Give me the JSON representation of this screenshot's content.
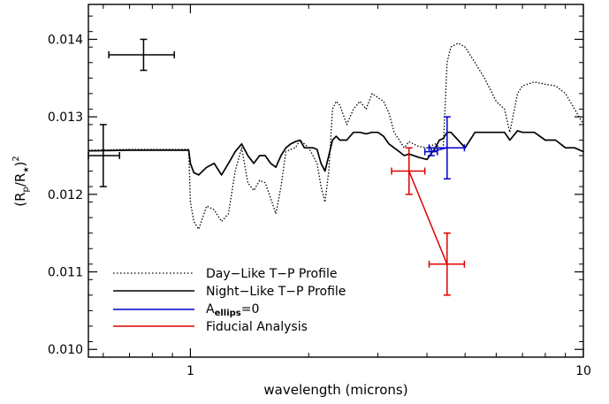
{
  "chart_data": {
    "type": "line",
    "xlabel": "wavelength (microns)",
    "ylabel": {
      "base": "(R",
      "sub1": "p",
      "mid": "/R",
      "sub2": "★",
      "close": ")",
      "sup": "2"
    },
    "x_scale": "log",
    "xlim": [
      0.55,
      10
    ],
    "ylim": [
      0.0099,
      0.01445
    ],
    "x_ticks": [
      {
        "value": 1,
        "label": "1"
      },
      {
        "value": 10,
        "label": "10"
      }
    ],
    "y_ticks": [
      {
        "value": 0.01,
        "label": "0.010"
      },
      {
        "value": 0.011,
        "label": "0.011"
      },
      {
        "value": 0.012,
        "label": "0.012"
      },
      {
        "value": 0.013,
        "label": "0.013"
      },
      {
        "value": 0.014,
        "label": "0.014"
      }
    ],
    "legend_position": "bottom-left",
    "legend": [
      {
        "label": "Day−Like T−P Profile",
        "style": "dotted",
        "color": "#000000"
      },
      {
        "label": "Night−Like T−P Profile",
        "style": "solid",
        "color": "#000000"
      },
      {
        "label_base": "A",
        "label_sub": "ellips",
        "label_rest": "=0",
        "style": "solid",
        "color": "#0000cc"
      },
      {
        "label": "Fiducial Analysis",
        "style": "solid",
        "color": "#dd0000"
      }
    ],
    "series": [
      {
        "style": "dotted",
        "color": "#000000",
        "x": [
          0.55,
          0.7,
          0.85,
          0.99,
          1.0,
          1.02,
          1.05,
          1.1,
          1.15,
          1.2,
          1.25,
          1.3,
          1.35,
          1.4,
          1.45,
          1.5,
          1.55,
          1.6,
          1.65,
          1.7,
          1.75,
          1.8,
          1.85,
          1.9,
          1.95,
          2.0,
          2.05,
          2.1,
          2.15,
          2.2,
          2.25,
          2.3,
          2.35,
          2.4,
          2.5,
          2.6,
          2.7,
          2.8,
          2.9,
          3.0,
          3.1,
          3.2,
          3.3,
          3.4,
          3.5,
          3.6,
          3.8,
          4.0,
          4.2,
          4.3,
          4.4,
          4.5,
          4.6,
          4.8,
          5.0,
          5.3,
          5.6,
          6.0,
          6.3,
          6.5,
          6.8,
          7.0,
          7.5,
          8.0,
          8.5,
          9.0,
          9.5,
          10.0
        ],
        "y": [
          0.01257,
          0.01258,
          0.01258,
          0.01258,
          0.0119,
          0.01165,
          0.01155,
          0.01185,
          0.0118,
          0.01165,
          0.01175,
          0.0123,
          0.0126,
          0.01215,
          0.01205,
          0.01218,
          0.01215,
          0.01195,
          0.01175,
          0.0121,
          0.01255,
          0.01258,
          0.0126,
          0.0127,
          0.01265,
          0.0126,
          0.0125,
          0.0124,
          0.0121,
          0.0119,
          0.0123,
          0.0131,
          0.0132,
          0.01315,
          0.0129,
          0.0131,
          0.0132,
          0.0131,
          0.0133,
          0.01325,
          0.0132,
          0.01305,
          0.0128,
          0.0127,
          0.0126,
          0.01268,
          0.01262,
          0.0126,
          0.01265,
          0.0126,
          0.0126,
          0.0137,
          0.0139,
          0.01395,
          0.0139,
          0.0137,
          0.0135,
          0.0132,
          0.0131,
          0.0128,
          0.0133,
          0.0134,
          0.01345,
          0.01342,
          0.0134,
          0.0133,
          0.0131,
          0.0129
        ]
      },
      {
        "style": "solid",
        "color": "#000000",
        "x": [
          0.55,
          0.7,
          0.85,
          0.99,
          1.0,
          1.02,
          1.05,
          1.1,
          1.15,
          1.2,
          1.25,
          1.3,
          1.35,
          1.4,
          1.45,
          1.5,
          1.55,
          1.6,
          1.65,
          1.7,
          1.75,
          1.8,
          1.85,
          1.9,
          1.95,
          2.0,
          2.05,
          2.1,
          2.15,
          2.2,
          2.25,
          2.3,
          2.35,
          2.4,
          2.5,
          2.6,
          2.7,
          2.8,
          2.9,
          3.0,
          3.1,
          3.2,
          3.3,
          3.4,
          3.5,
          3.6,
          3.8,
          4.0,
          4.2,
          4.3,
          4.4,
          4.5,
          4.6,
          4.8,
          5.0,
          5.3,
          5.6,
          6.0,
          6.3,
          6.5,
          6.8,
          7.0,
          7.5,
          8.0,
          8.5,
          9.0,
          9.5,
          10.0
        ],
        "y": [
          0.01256,
          0.01257,
          0.01257,
          0.01257,
          0.0124,
          0.01228,
          0.01225,
          0.01235,
          0.0124,
          0.01225,
          0.0124,
          0.01255,
          0.01265,
          0.0125,
          0.0124,
          0.0125,
          0.0125,
          0.0124,
          0.01235,
          0.0125,
          0.0126,
          0.01265,
          0.01268,
          0.0127,
          0.0126,
          0.0126,
          0.0126,
          0.01258,
          0.0124,
          0.0123,
          0.0125,
          0.0127,
          0.01275,
          0.0127,
          0.0127,
          0.0128,
          0.0128,
          0.01278,
          0.0128,
          0.0128,
          0.01275,
          0.01265,
          0.0126,
          0.01255,
          0.0125,
          0.01252,
          0.01248,
          0.01245,
          0.0126,
          0.0127,
          0.01272,
          0.0128,
          0.0128,
          0.0127,
          0.0126,
          0.0128,
          0.0128,
          0.0128,
          0.0128,
          0.0127,
          0.01282,
          0.0128,
          0.0128,
          0.0127,
          0.0127,
          0.0126,
          0.0126,
          0.01255
        ]
      },
      {
        "name": "A_ellips=0",
        "style": "solid",
        "color": "#0000cc",
        "points": [
          {
            "x": 4.1,
            "y": 0.01255,
            "xerr": [
              3.95,
              4.25
            ],
            "yerr": [
              0.0125,
              0.0126
            ]
          },
          {
            "x": 4.5,
            "y": 0.0126,
            "xerr": [
              4.05,
              4.98
            ],
            "yerr": [
              0.0122,
              0.013
            ]
          }
        ]
      },
      {
        "name": "Fiducial Analysis",
        "style": "solid",
        "color": "#dd0000",
        "points": [
          {
            "x": 3.6,
            "y": 0.0123,
            "xerr": [
              3.25,
              3.95
            ],
            "yerr": [
              0.012,
              0.0126
            ]
          },
          {
            "x": 4.5,
            "y": 0.0111,
            "xerr": [
              4.05,
              4.98
            ],
            "yerr": [
              0.0107,
              0.0115
            ]
          }
        ]
      }
    ],
    "reference_errorbars": [
      {
        "x": 0.76,
        "y": 0.0138,
        "xerr": [
          0.62,
          0.91
        ],
        "yerr": [
          0.0136,
          0.014
        ],
        "color": "#000000"
      },
      {
        "x": 0.6,
        "y": 0.0125,
        "xerr": [
          0.55,
          0.66
        ],
        "yerr": [
          0.0121,
          0.0129
        ],
        "color": "#000000"
      }
    ]
  }
}
